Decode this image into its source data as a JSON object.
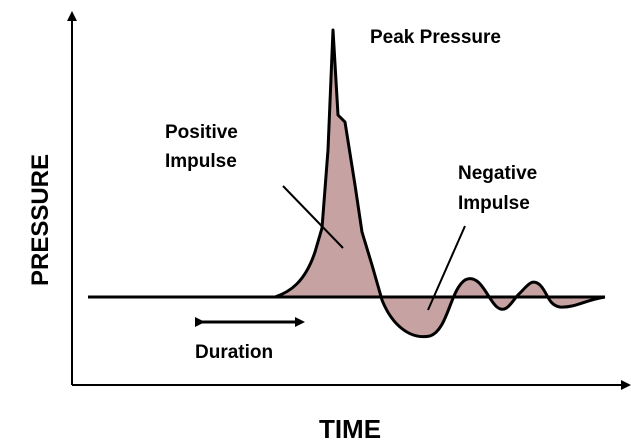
{
  "labels": {
    "peak": "Peak Pressure",
    "positive": [
      "Positive",
      "Impulse"
    ],
    "negative": [
      "Negative",
      "Impulse"
    ],
    "duration": "Duration",
    "y_axis": "PRESSURE",
    "x_axis": "TIME"
  }
}
